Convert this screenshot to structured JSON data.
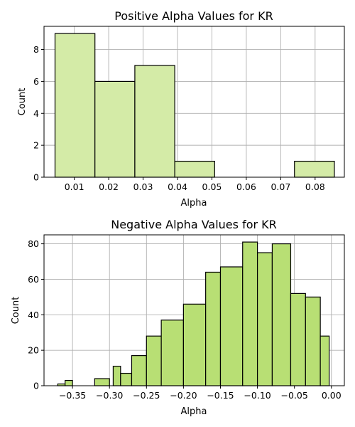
{
  "chart_data": [
    {
      "type": "bar",
      "title": "Positive Alpha Values for KR",
      "xlabel": "Alpha",
      "ylabel": "Count",
      "color": "#d4eba7",
      "grid": true,
      "xlim": [
        0.0012,
        0.0885
      ],
      "ylim": [
        0,
        9.45
      ],
      "xticks": [
        0.01,
        0.02,
        0.03,
        0.04,
        0.05,
        0.06,
        0.07,
        0.08
      ],
      "xtick_labels": [
        "0.01",
        "0.02",
        "0.03",
        "0.04",
        "0.05",
        "0.06",
        "0.07",
        "0.08"
      ],
      "yticks": [
        0,
        2,
        4,
        6,
        8
      ],
      "ytick_labels": [
        "0",
        "2",
        "4",
        "6",
        "8"
      ],
      "bins": [
        {
          "x0": 0.0044,
          "x1": 0.016,
          "value": 9
        },
        {
          "x0": 0.016,
          "x1": 0.0276,
          "value": 6
        },
        {
          "x0": 0.0276,
          "x1": 0.0392,
          "value": 7
        },
        {
          "x0": 0.0392,
          "x1": 0.0508,
          "value": 1
        },
        {
          "x0": 0.0508,
          "x1": 0.0624,
          "value": 0
        },
        {
          "x0": 0.0624,
          "x1": 0.074,
          "value": 0
        },
        {
          "x0": 0.074,
          "x1": 0.0856,
          "value": 1
        }
      ]
    },
    {
      "type": "bar",
      "title": "Negative Alpha Values for KR",
      "xlabel": "Alpha",
      "ylabel": "Count",
      "color": "#b8df74",
      "grid": true,
      "xlim": [
        -0.3885,
        0.0175
      ],
      "ylim": [
        0,
        85.05
      ],
      "xticks": [
        -0.35,
        -0.3,
        -0.25,
        -0.2,
        -0.15,
        -0.1,
        -0.05,
        0.0
      ],
      "xtick_labels": [
        "−0.35",
        "−0.30",
        "−0.25",
        "−0.20",
        "−0.15",
        "−0.10",
        "−0.05",
        "0.00"
      ],
      "yticks": [
        0,
        20,
        40,
        60,
        80
      ],
      "ytick_labels": [
        "0",
        "20",
        "40",
        "60",
        "80"
      ],
      "bins": [
        {
          "x0": -0.37,
          "x1": -0.36,
          "value": 1
        },
        {
          "x0": -0.36,
          "x1": -0.35,
          "value": 3
        },
        {
          "x0": -0.35,
          "x1": -0.34,
          "value": 0
        },
        {
          "x0": -0.32,
          "x1": -0.3,
          "value": 4
        },
        {
          "x0": -0.295,
          "x1": -0.285,
          "value": 11
        },
        {
          "x0": -0.285,
          "x1": -0.27,
          "value": 7
        },
        {
          "x0": -0.27,
          "x1": -0.25,
          "value": 17
        },
        {
          "x0": -0.25,
          "x1": -0.23,
          "value": 28
        },
        {
          "x0": -0.23,
          "x1": -0.2,
          "value": 37
        },
        {
          "x0": -0.2,
          "x1": -0.17,
          "value": 46
        },
        {
          "x0": -0.17,
          "x1": -0.15,
          "value": 64
        },
        {
          "x0": -0.15,
          "x1": -0.12,
          "value": 67
        },
        {
          "x0": -0.12,
          "x1": -0.1,
          "value": 81
        },
        {
          "x0": -0.1,
          "x1": -0.08,
          "value": 75
        },
        {
          "x0": -0.08,
          "x1": -0.055,
          "value": 80
        },
        {
          "x0": -0.055,
          "x1": -0.035,
          "value": 52
        },
        {
          "x0": -0.035,
          "x1": -0.015,
          "value": 50
        },
        {
          "x0": -0.015,
          "x1": -0.003,
          "value": 28
        }
      ]
    }
  ]
}
